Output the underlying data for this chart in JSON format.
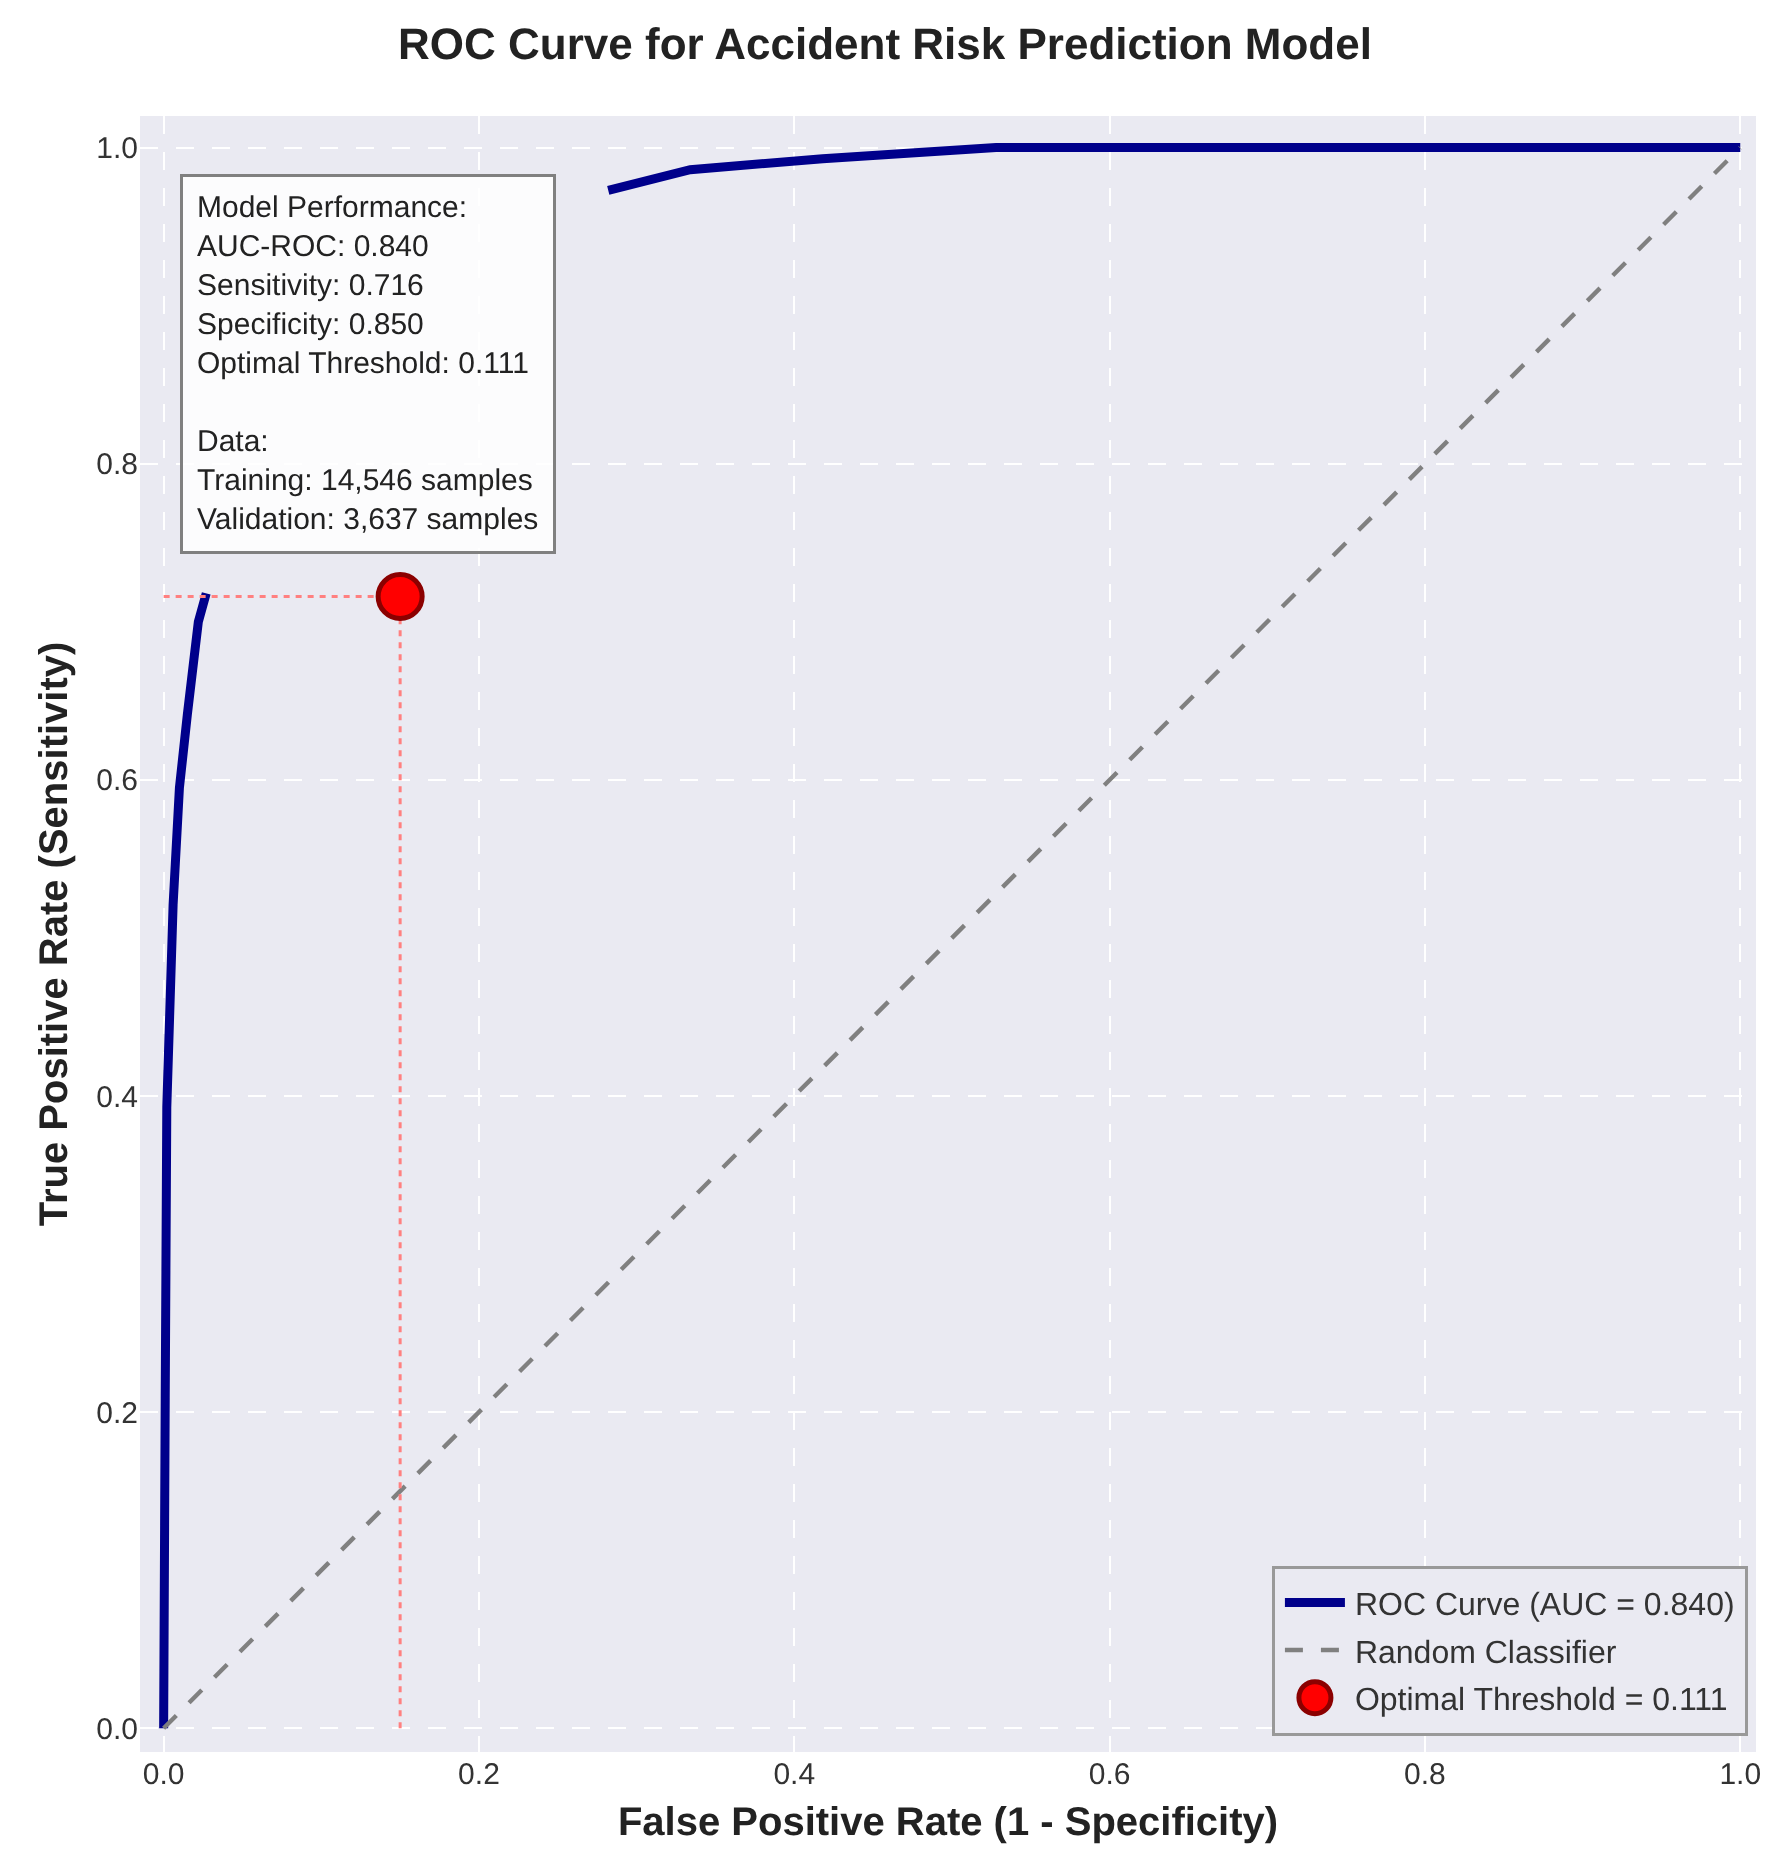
{
  "chart_data": {
    "type": "line",
    "title": "ROC Curve for Accident Risk Prediction Model",
    "xlabel": "False Positive Rate (1 - Specificity)",
    "ylabel": "True Positive Rate (Sensitivity)",
    "series": [
      {
        "name": "ROC Curve (AUC = 0.840)",
        "color": "#00008b",
        "line_style": "solid",
        "x": [
          0,
          0.001,
          0.002,
          0.006,
          0.01,
          0.015,
          0.022,
          0.027,
          0.035,
          0.069,
          0.111,
          0.174,
          0.237,
          0.282,
          0.334,
          0.418,
          0.528,
          0.65,
          1.0
        ],
        "values": [
          0,
          0.209,
          0.393,
          0.521,
          0.595,
          0.641,
          0.7,
          0.718,
          null,
          null,
          null,
          null,
          null,
          0.973,
          0.986,
          0.993,
          1.0,
          1.0,
          1.0
        ]
      },
      {
        "name": "Random Classifier",
        "color": "#808080",
        "line_style": "dashed",
        "x": [
          0,
          1
        ],
        "values": [
          0,
          1
        ]
      },
      {
        "color": "#ff8080",
        "line_style": "dotted",
        "x": [
          0,
          0.15
        ],
        "values": [
          0.716,
          0.716
        ]
      },
      {
        "color": "#ff8080",
        "line_style": "dotted",
        "x": [
          0.15,
          0.15
        ],
        "values": [
          0,
          0.716
        ]
      },
      {
        "name": "Optimal Threshold = 0.111",
        "color": "#ff0000",
        "type": "scatter",
        "marker": "circle",
        "x": [
          0.15
        ],
        "values": [
          0.716
        ]
      }
    ],
    "xlim": [
      -0.015,
      1.01
    ],
    "ylim": [
      -0.015,
      1.02
    ],
    "xticks": [
      {
        "value": 0,
        "label": "0.0"
      },
      {
        "value": 0.2,
        "label": "0.2"
      },
      {
        "value": 0.4,
        "label": "0.4"
      },
      {
        "value": 0.6,
        "label": "0.6"
      },
      {
        "value": 0.8,
        "label": "0.8"
      },
      {
        "value": 1,
        "label": "1.0"
      }
    ],
    "yticks": [
      {
        "value": 0,
        "label": "0.0"
      },
      {
        "value": 0.2,
        "label": "0.2"
      },
      {
        "value": 0.4,
        "label": "0.4"
      },
      {
        "value": 0.6,
        "label": "0.6"
      },
      {
        "value": 0.8,
        "label": "0.8"
      },
      {
        "value": 1,
        "label": "1.0"
      }
    ],
    "grid": true,
    "legend": "bottom right",
    "annotations": [
      "Model Performance:\nAUC-ROC: 0.840\nSensitivity: 0.716\nSpecificity: 0.850\nOptimal Threshold: 0.111\n\nData:\nTraining: 14,546 samples\nValidation: 3,637 samples"
    ]
  }
}
